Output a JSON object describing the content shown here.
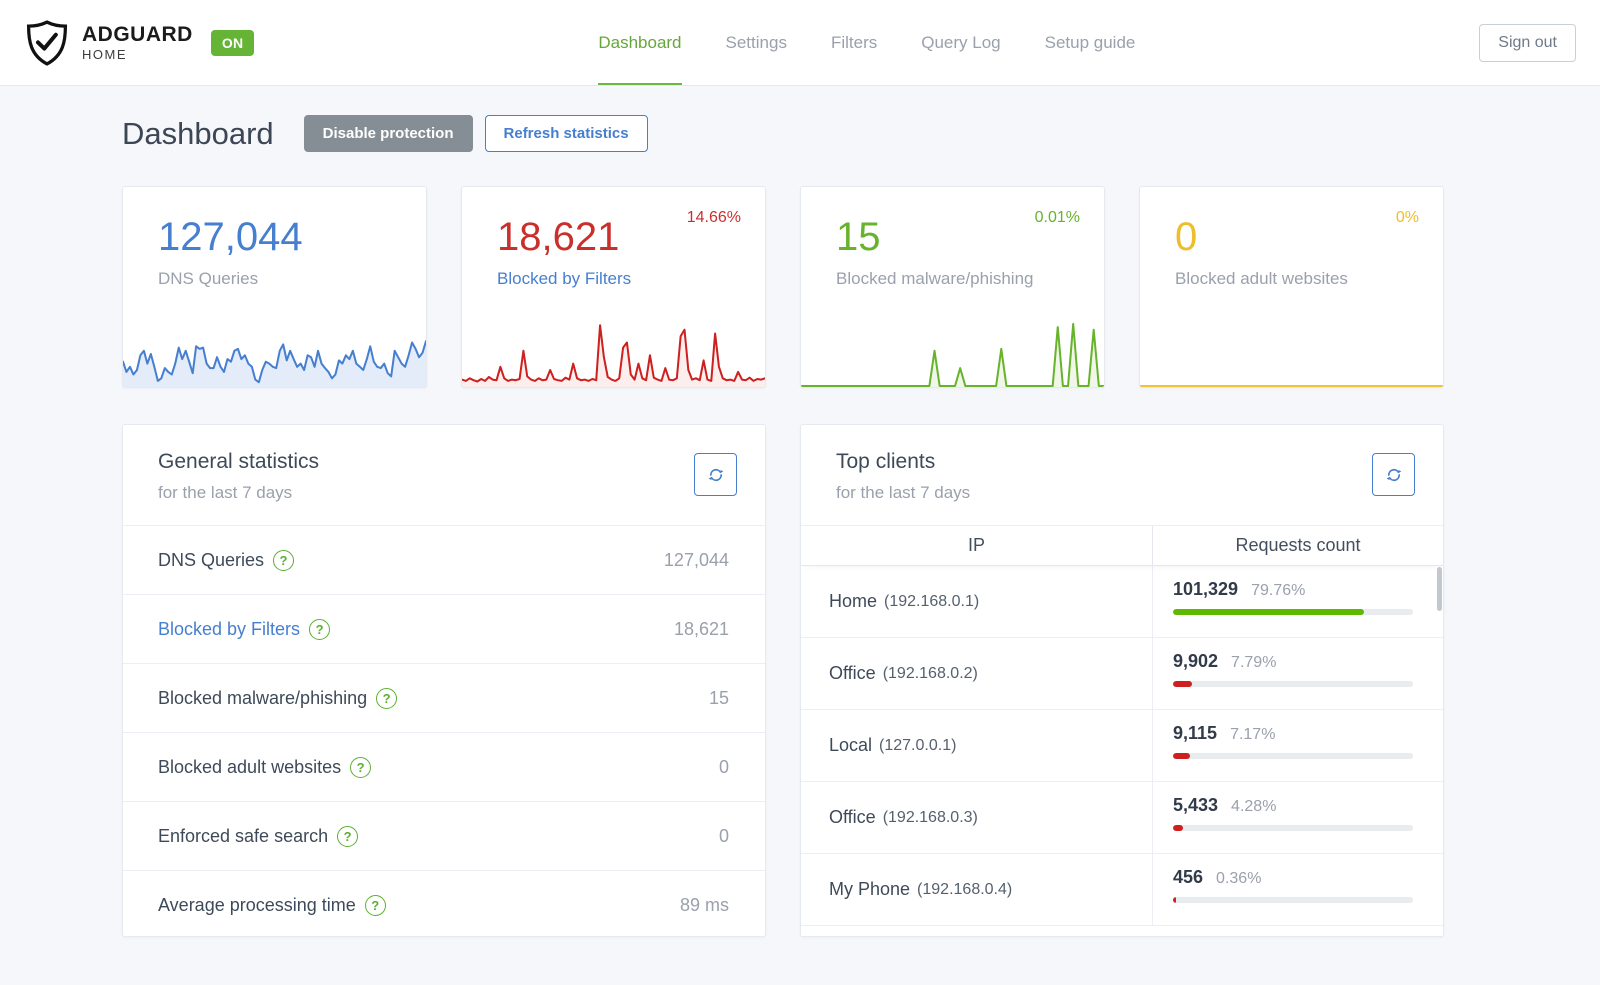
{
  "colors": {
    "blue": "#467fcf",
    "red": "#cd201f",
    "green": "#67b32c",
    "yellow": "#f0c330",
    "badge_green": "#65b436",
    "nav_active_green": "#67a63c"
  },
  "topbar": {
    "brand_name": "ADGUARD",
    "brand_sub": "HOME",
    "status_badge": "ON",
    "nav": [
      {
        "label": "Dashboard",
        "active": true
      },
      {
        "label": "Settings",
        "active": false
      },
      {
        "label": "Filters",
        "active": false
      },
      {
        "label": "Query Log",
        "active": false
      },
      {
        "label": "Setup guide",
        "active": false
      }
    ],
    "signout_label": "Sign out"
  },
  "header": {
    "page_title": "Dashboard",
    "disable_protection_label": "Disable protection",
    "refresh_statistics_label": "Refresh statistics"
  },
  "chart_data": [
    {
      "type": "area",
      "title": "DNS Queries sparkline",
      "color": "#467fcf",
      "fill": "rgba(70,127,207,0.15)",
      "values": [
        38,
        22,
        30,
        18,
        25,
        48,
        55,
        35,
        50,
        30,
        8,
        12,
        28,
        22,
        18,
        35,
        60,
        42,
        55,
        38,
        20,
        62,
        58,
        60,
        35,
        28,
        28,
        45,
        30,
        22,
        42,
        38,
        55,
        58,
        42,
        48,
        35,
        30,
        10,
        6,
        25,
        38,
        35,
        30,
        28,
        55,
        65,
        40,
        55,
        42,
        30,
        35,
        25,
        48,
        45,
        30,
        55,
        35,
        28,
        22,
        12,
        18,
        40,
        35,
        48,
        42,
        55,
        35,
        30,
        25,
        42,
        62,
        38,
        30,
        28,
        35,
        20,
        15,
        55,
        45,
        35,
        30,
        48,
        68,
        58,
        45,
        52,
        70
      ]
    },
    {
      "type": "area",
      "title": "Blocked by Filters sparkline",
      "color": "#cd201f",
      "fill": "rgba(205,32,31,0.08)",
      "values": [
        10,
        8,
        12,
        9,
        7,
        11,
        8,
        14,
        10,
        9,
        30,
        12,
        8,
        10,
        9,
        11,
        55,
        15,
        10,
        8,
        12,
        9,
        10,
        25,
        11,
        9,
        8,
        13,
        10,
        35,
        12,
        9,
        10,
        8,
        11,
        9,
        95,
        45,
        14,
        10,
        8,
        12,
        60,
        68,
        18,
        10,
        35,
        12,
        9,
        48,
        13,
        10,
        8,
        28,
        10,
        9,
        12,
        78,
        88,
        25,
        10,
        12,
        9,
        40,
        10,
        8,
        82,
        30,
        12,
        9,
        10,
        8,
        22,
        10,
        9,
        13,
        8,
        11,
        10,
        12
      ]
    },
    {
      "type": "area",
      "title": "Blocked malware/phishing sparkline",
      "color": "#67b32c",
      "fill": "rgba(103,179,44,0.10)",
      "values": [
        0,
        0,
        0,
        0,
        0,
        0,
        0,
        0,
        0,
        0,
        0,
        0,
        0,
        0,
        0,
        0,
        0,
        0,
        0,
        0,
        0,
        0,
        0,
        0,
        0,
        0,
        55,
        0,
        0,
        0,
        0,
        28,
        0,
        0,
        0,
        0,
        0,
        0,
        0,
        58,
        0,
        0,
        0,
        0,
        0,
        0,
        0,
        0,
        0,
        0,
        92,
        0,
        0,
        97,
        0,
        0,
        0,
        88,
        0,
        0
      ]
    },
    {
      "type": "area",
      "title": "Blocked adult websites sparkline",
      "color": "#f0c330",
      "fill": "rgba(240,195,48,0.0)",
      "values": [
        0,
        0
      ]
    }
  ],
  "stat_cards": [
    {
      "value": "127,044",
      "label": "DNS Queries",
      "percent": ""
    },
    {
      "value": "18,621",
      "label": "Blocked by Filters",
      "percent": "14.66%"
    },
    {
      "value": "15",
      "label": "Blocked malware/phishing",
      "percent": "0.01%"
    },
    {
      "value": "0",
      "label": "Blocked adult websites",
      "percent": "0%"
    }
  ],
  "general": {
    "title": "General statistics",
    "subtitle": "for the last 7 days",
    "rows": [
      {
        "label": "DNS Queries",
        "value": "127,044"
      },
      {
        "label": "Blocked by Filters",
        "value": "18,621"
      },
      {
        "label": "Blocked malware/phishing",
        "value": "15"
      },
      {
        "label": "Blocked adult websites",
        "value": "0"
      },
      {
        "label": "Enforced safe search",
        "value": "0"
      },
      {
        "label": "Average processing time",
        "value": "89 ms"
      }
    ],
    "help_glyph": "?"
  },
  "clients": {
    "title": "Top clients",
    "subtitle": "for the last 7 days",
    "col_ip": "IP",
    "col_count": "Requests count",
    "rows": [
      {
        "name": "Home",
        "ip": "(192.168.0.1)",
        "count": "101,329",
        "percent": "79.76%",
        "percent_value": 79.76,
        "bar_color": "#5eba00"
      },
      {
        "name": "Office",
        "ip": "(192.168.0.2)",
        "count": "9,902",
        "percent": "7.79%",
        "percent_value": 7.79,
        "bar_color": "#cd201f"
      },
      {
        "name": "Local",
        "ip": "(127.0.0.1)",
        "count": "9,115",
        "percent": "7.17%",
        "percent_value": 7.17,
        "bar_color": "#cd201f"
      },
      {
        "name": "Office",
        "ip": "(192.168.0.3)",
        "count": "5,433",
        "percent": "4.28%",
        "percent_value": 4.28,
        "bar_color": "#cd201f"
      },
      {
        "name": "My Phone",
        "ip": "(192.168.0.4)",
        "count": "456",
        "percent": "0.36%",
        "percent_value": 0.36,
        "bar_color": "#cd201f"
      }
    ]
  }
}
